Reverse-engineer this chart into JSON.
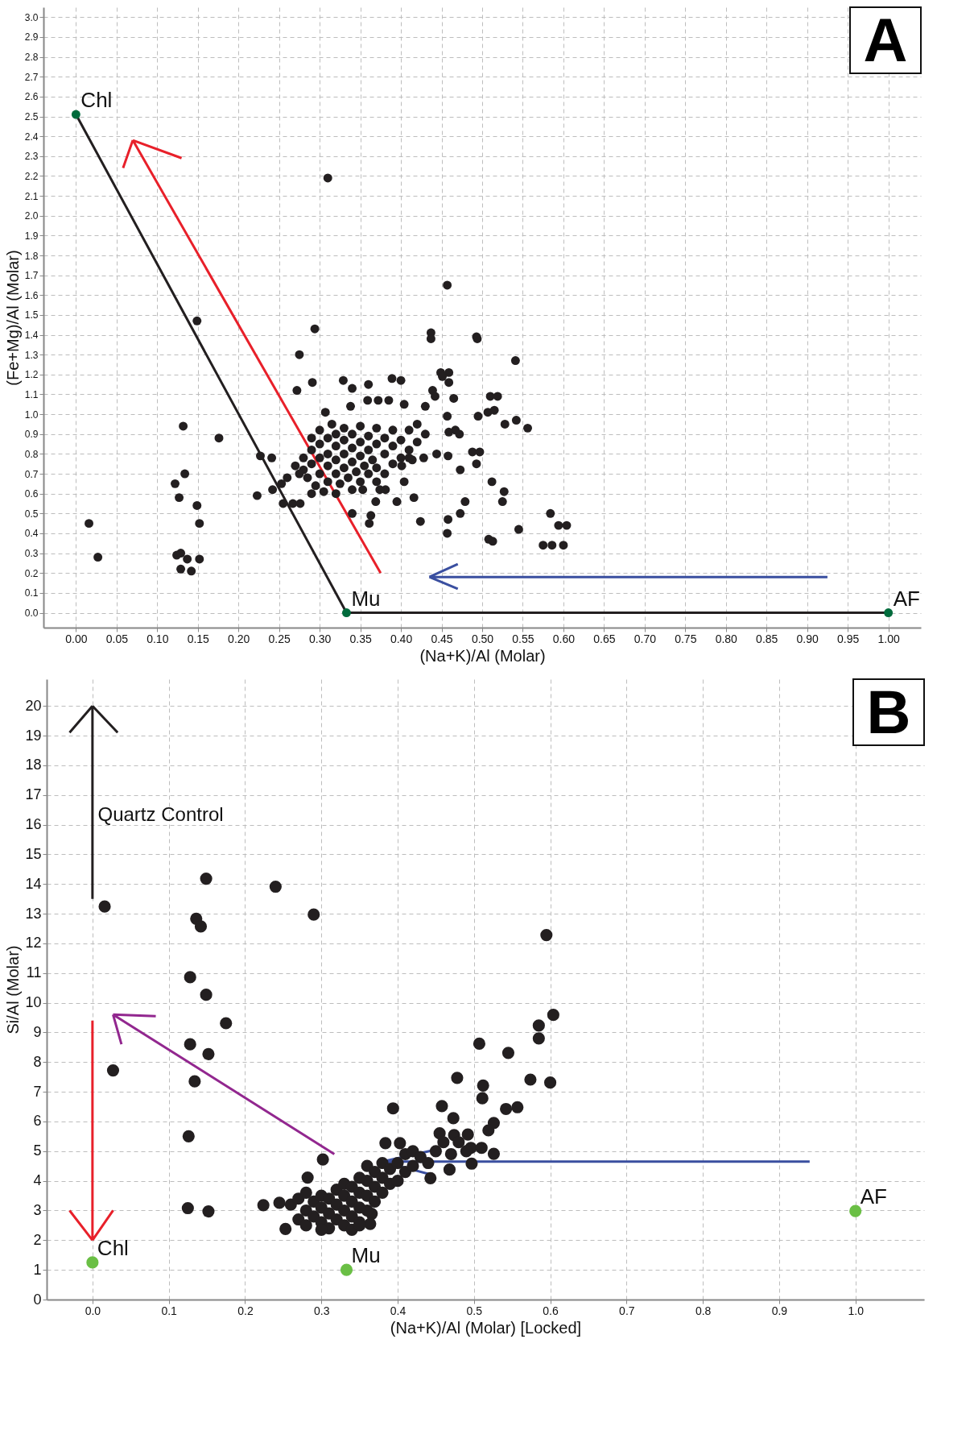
{
  "chart_data": [
    {
      "type": "scatter",
      "xlabel": "(Na+K)/Al (Molar)",
      "ylabel": "(Fe+Mg)/Al (Molar)",
      "xlim": [
        -0.04,
        1.04
      ],
      "ylim": [
        -0.075,
        3.05
      ],
      "xticks": [
        {
          "value": 0,
          "label": "0.00"
        },
        {
          "value": 0.05,
          "label": "0.05"
        },
        {
          "value": 0.1,
          "label": "0.10"
        },
        {
          "value": 0.15,
          "label": "0.15"
        },
        {
          "value": 0.2,
          "label": "0.20"
        },
        {
          "value": 0.25,
          "label": "0.25"
        },
        {
          "value": 0.3,
          "label": "0.30"
        },
        {
          "value": 0.35,
          "label": "0.35"
        },
        {
          "value": 0.4,
          "label": "0.40"
        },
        {
          "value": 0.45,
          "label": "0.45"
        },
        {
          "value": 0.5,
          "label": "0.50"
        },
        {
          "value": 0.55,
          "label": "0.55"
        },
        {
          "value": 0.6,
          "label": "0.60"
        },
        {
          "value": 0.65,
          "label": "0.65"
        },
        {
          "value": 0.7,
          "label": "0.70"
        },
        {
          "value": 0.75,
          "label": "0.75"
        },
        {
          "value": 0.8,
          "label": "0.80"
        },
        {
          "value": 0.85,
          "label": "0.85"
        },
        {
          "value": 0.9,
          "label": "0.90"
        },
        {
          "value": 0.95,
          "label": "0.95"
        },
        {
          "value": 1,
          "label": "1.00"
        }
      ],
      "yticks": [
        {
          "value": 0,
          "label": "0.0"
        },
        0.1,
        0.2,
        0.3,
        0.4,
        0.5,
        0.6,
        0.7,
        0.8,
        0.9,
        {
          "value": 1,
          "label": "1.0"
        },
        1.1,
        1.2,
        1.3,
        1.4,
        1.5,
        1.6,
        1.7,
        1.8,
        1.9,
        {
          "value": 2,
          "label": "2.0"
        },
        2.1,
        2.2,
        2.3,
        2.4,
        2.5,
        2.6,
        2.7,
        2.8,
        2.9,
        {
          "value": 3,
          "label": "3.0"
        }
      ],
      "grid": true,
      "marker": "circle",
      "annotations": [
        "A"
      ],
      "series": [
        {
          "color": "#231f20",
          "x": [
            0.31,
            0.457,
            0.149,
            0.294,
            0.437,
            0.437,
            0.493,
            0.494,
            0.275,
            0.541,
            0.449,
            0.459,
            0.451,
            0.459,
            0.291,
            0.329,
            0.34,
            0.36,
            0.389,
            0.4,
            0.272,
            0.439,
            0.442,
            0.465,
            0.51,
            0.519,
            0.359,
            0.372,
            0.385,
            0.338,
            0.43,
            0.307,
            0.404,
            0.495,
            0.507,
            0.515,
            0.457,
            0.132,
            0.176,
            0.528,
            0.542,
            0.556,
            0.467,
            0.472,
            0.459,
            0.488,
            0.497,
            0.458,
            0.444,
            0.428,
            0.414,
            0.473,
            0.493,
            0.134,
            0.122,
            0.127,
            0.227,
            0.241,
            0.223,
            0.242,
            0.253,
            0.255,
            0.267,
            0.276,
            0.149,
            0.152,
            0.016,
            0.027,
            0.124,
            0.129,
            0.137,
            0.152,
            0.129,
            0.142,
            0.512,
            0.527,
            0.525,
            0.479,
            0.473,
            0.458,
            0.457,
            0.424,
            0.395,
            0.416,
            0.363,
            0.361,
            0.34,
            0.369,
            0.353,
            0.508,
            0.513,
            0.545,
            0.584,
            0.594,
            0.604,
            0.575,
            0.586,
            0.6,
            0.404,
            0.381,
            0.374,
            0.401,
            0.41,
            0.28,
            0.28,
            0.285,
            0.29,
            0.29,
            0.29,
            0.295,
            0.3,
            0.3,
            0.3,
            0.3,
            0.305,
            0.31,
            0.31,
            0.31,
            0.31,
            0.315,
            0.32,
            0.32,
            0.32,
            0.32,
            0.32,
            0.325,
            0.33,
            0.33,
            0.33,
            0.33,
            0.335,
            0.34,
            0.34,
            0.34,
            0.34,
            0.345,
            0.35,
            0.35,
            0.35,
            0.35,
            0.355,
            0.36,
            0.36,
            0.36,
            0.365,
            0.37,
            0.37,
            0.37,
            0.37,
            0.38,
            0.38,
            0.38,
            0.39,
            0.39,
            0.39,
            0.4,
            0.4,
            0.41,
            0.41,
            0.42,
            0.42,
            0.43,
            0.275,
            0.27,
            0.26,
            0.29
          ],
          "values": [
            2.19,
            1.65,
            1.47,
            1.43,
            1.41,
            1.38,
            1.39,
            1.38,
            1.3,
            1.27,
            1.21,
            1.21,
            1.19,
            1.16,
            1.16,
            1.17,
            1.13,
            1.15,
            1.18,
            1.17,
            1.12,
            1.12,
            1.09,
            1.08,
            1.09,
            1.09,
            1.07,
            1.07,
            1.07,
            1.04,
            1.04,
            1.01,
            1.05,
            0.99,
            1.01,
            1.02,
            0.99,
            0.94,
            0.88,
            0.95,
            0.97,
            0.93,
            0.92,
            0.9,
            0.91,
            0.81,
            0.81,
            0.79,
            0.8,
            0.78,
            0.77,
            0.72,
            0.75,
            0.7,
            0.65,
            0.58,
            0.79,
            0.78,
            0.59,
            0.62,
            0.65,
            0.55,
            0.55,
            0.55,
            0.54,
            0.45,
            0.45,
            0.28,
            0.29,
            0.3,
            0.27,
            0.27,
            0.22,
            0.21,
            0.66,
            0.61,
            0.56,
            0.56,
            0.5,
            0.47,
            0.4,
            0.46,
            0.56,
            0.58,
            0.49,
            0.45,
            0.5,
            0.56,
            0.62,
            0.37,
            0.36,
            0.42,
            0.5,
            0.44,
            0.44,
            0.34,
            0.34,
            0.34,
            0.66,
            0.62,
            0.62,
            0.74,
            0.78,
            0.72,
            0.78,
            0.68,
            0.75,
            0.82,
            0.88,
            0.64,
            0.7,
            0.78,
            0.85,
            0.92,
            0.61,
            0.66,
            0.74,
            0.8,
            0.88,
            0.95,
            0.6,
            0.7,
            0.77,
            0.84,
            0.9,
            0.65,
            0.73,
            0.8,
            0.87,
            0.93,
            0.68,
            0.62,
            0.76,
            0.83,
            0.9,
            0.71,
            0.66,
            0.79,
            0.86,
            0.94,
            0.74,
            0.7,
            0.82,
            0.89,
            0.77,
            0.66,
            0.73,
            0.85,
            0.93,
            0.7,
            0.8,
            0.88,
            0.75,
            0.84,
            0.92,
            0.78,
            0.87,
            0.82,
            0.92,
            0.86,
            0.95,
            0.9,
            0.7,
            0.74,
            0.68,
            0.6
          ]
        },
        {
          "type": "line",
          "marker": "none",
          "color": "#231f20",
          "x": [
            0,
            0.333,
            1
          ],
          "values": [
            2.51,
            0,
            0
          ]
        },
        {
          "name": "Chl",
          "color": "#006b3c",
          "x": [
            0
          ],
          "values": [
            2.51
          ]
        },
        {
          "name": "Mu",
          "color": "#006b3c",
          "x": [
            0.333
          ],
          "values": [
            0
          ]
        },
        {
          "name": "AF",
          "color": "#006b3c",
          "x": [
            1
          ],
          "values": [
            0
          ]
        }
      ]
    },
    {
      "type": "scatter",
      "xlabel": "(Na+K)/Al (Molar) [Locked]",
      "ylabel": "Si/Al (Molar)",
      "xlim": [
        -0.06,
        1.09
      ],
      "ylim": [
        0,
        20.9
      ],
      "xticks": [
        {
          "value": 0,
          "label": "0.0"
        },
        0.1,
        0.2,
        0.3,
        0.4,
        0.5,
        0.6,
        0.7,
        0.8,
        0.9,
        {
          "value": 1,
          "label": "1.0"
        }
      ],
      "yticks": [
        0,
        1,
        2,
        3,
        4,
        5,
        6,
        7,
        8,
        9,
        10,
        11,
        12,
        13,
        14,
        15,
        16,
        17,
        18,
        19,
        20
      ],
      "grid": true,
      "marker": "circle",
      "annotations": [
        "B",
        "Quartz Control"
      ],
      "series": [
        {
          "color": "#231f20",
          "x": [
            0.149,
            0.24,
            0.016,
            0.29,
            0.136,
            0.142,
            0.595,
            0.128,
            0.149,
            0.175,
            0.604,
            0.585,
            0.585,
            0.128,
            0.152,
            0.507,
            0.545,
            0.027,
            0.134,
            0.478,
            0.512,
            0.511,
            0.574,
            0.6,
            0.394,
            0.458,
            0.473,
            0.542,
            0.557,
            0.526,
            0.519,
            0.126,
            0.455,
            0.474,
            0.492,
            0.302,
            0.384,
            0.403,
            0.496,
            0.51,
            0.526,
            0.468,
            0.443,
            0.497,
            0.125,
            0.152,
            0.224,
            0.245,
            0.282,
            0.253,
            0.366,
            0.364,
            0.27,
            0.28,
            0.28,
            0.29,
            0.29,
            0.3,
            0.3,
            0.3,
            0.31,
            0.31,
            0.31,
            0.32,
            0.32,
            0.32,
            0.33,
            0.33,
            0.33,
            0.33,
            0.34,
            0.34,
            0.34,
            0.35,
            0.35,
            0.35,
            0.35,
            0.36,
            0.36,
            0.36,
            0.36,
            0.37,
            0.37,
            0.37,
            0.38,
            0.38,
            0.38,
            0.39,
            0.39,
            0.4,
            0.4,
            0.41,
            0.41,
            0.42,
            0.42,
            0.43,
            0.44,
            0.45,
            0.46,
            0.47,
            0.48,
            0.49,
            0.26,
            0.27,
            0.28,
            0.3,
            0.34,
            0.35
          ],
          "values": [
            14.18,
            13.91,
            13.24,
            12.97,
            12.83,
            12.57,
            12.28,
            10.86,
            10.27,
            9.31,
            9.59,
            9.23,
            8.8,
            8.6,
            8.27,
            8.62,
            8.31,
            7.72,
            7.35,
            7.47,
            7.21,
            6.78,
            7.41,
            7.31,
            6.44,
            6.52,
            6.11,
            6.42,
            6.48,
            5.95,
            5.7,
            5.5,
            5.6,
            5.54,
            5.56,
            4.72,
            5.27,
            5.27,
            5.11,
            5.11,
            4.91,
            4.38,
            4.09,
            4.58,
            3.08,
            2.97,
            3.18,
            3.26,
            4.11,
            2.38,
            2.89,
            2.55,
            2.7,
            2.5,
            3.0,
            2.8,
            3.3,
            2.6,
            3.1,
            3.5,
            2.4,
            2.9,
            3.4,
            2.7,
            3.2,
            3.7,
            2.5,
            3.0,
            3.5,
            3.9,
            2.8,
            3.3,
            3.8,
            2.6,
            3.1,
            3.6,
            4.1,
            3.0,
            3.5,
            4.0,
            4.5,
            3.3,
            3.8,
            4.3,
            3.6,
            4.1,
            4.6,
            3.9,
            4.4,
            4.0,
            4.6,
            4.3,
            4.9,
            4.5,
            5.0,
            4.8,
            4.6,
            5.0,
            5.3,
            4.9,
            5.3,
            5.0,
            3.2,
            3.4,
            3.6,
            2.35,
            2.35,
            2.5
          ]
        },
        {
          "name": "Chl",
          "color": "#6abf45",
          "x": [
            0
          ],
          "values": [
            1.25
          ]
        },
        {
          "name": "Mu",
          "color": "#6abf45",
          "x": [
            0.333
          ],
          "values": [
            1.0
          ]
        },
        {
          "name": "AF",
          "color": "#6abf45",
          "x": [
            1
          ],
          "values": [
            2.98
          ]
        }
      ]
    }
  ]
}
